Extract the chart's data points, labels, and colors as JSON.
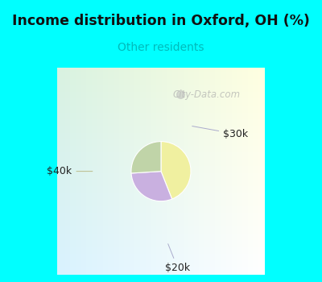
{
  "title": "Income distribution in Oxford, OH (%)",
  "subtitle": "Other residents",
  "title_color": "#111111",
  "subtitle_color": "#00bbbb",
  "border_color": "#00ffff",
  "chart_bg_top": "#e8f5f0",
  "chart_bg_bot": "#d0ede0",
  "slices": [
    {
      "label": "$40k",
      "value": 44,
      "color": "#f0f0a0"
    },
    {
      "label": "$30k",
      "value": 30,
      "color": "#c9b0e0"
    },
    {
      "label": "$20k",
      "value": 26,
      "color": "#c0d4a8"
    }
  ],
  "watermark": "City-Data.com",
  "figsize": [
    4.0,
    3.5
  ],
  "dpi": 100,
  "border_thickness": 10
}
